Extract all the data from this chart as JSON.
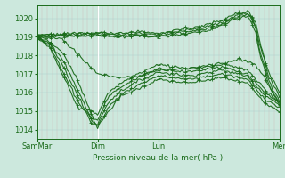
{
  "bg_color": "#cce8dd",
  "grid_color_minor": "#aacccc",
  "grid_color_major": "#ffffff",
  "line_color": "#1a6b1a",
  "ylabel": "Pression niveau de la mer( hPa )",
  "xtick_labels": [
    "SamMar",
    "Dim",
    "Lun",
    "Mer"
  ],
  "xtick_positions": [
    0,
    72,
    144,
    288
  ],
  "ylim": [
    1013.5,
    1020.7
  ],
  "yticks": [
    1014,
    1015,
    1016,
    1017,
    1018,
    1019,
    1020
  ],
  "total_hours": 288,
  "line_width": 0.8,
  "marker_interval": 8
}
